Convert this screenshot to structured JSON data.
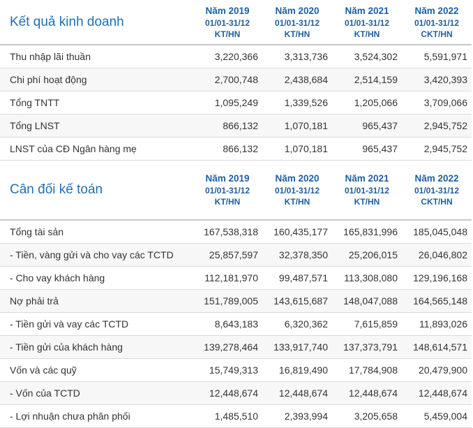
{
  "income": {
    "title": "Kết quả kinh doanh",
    "headers": [
      {
        "year": "Năm 2019",
        "period": "01/01-31/12",
        "audit": "KT/HN"
      },
      {
        "year": "Năm 2020",
        "period": "01/01-31/12",
        "audit": "KT/HN"
      },
      {
        "year": "Năm 2021",
        "period": "01/01-31/12",
        "audit": "KT/HN"
      },
      {
        "year": "Năm 2022",
        "period": "01/01-31/12",
        "audit": "CKT/HN"
      }
    ],
    "rows": [
      {
        "label": "Thu nhập lãi thuần",
        "values": [
          "3,220,366",
          "3,313,736",
          "3,524,302",
          "5,591,971"
        ]
      },
      {
        "label": "Chi phí hoạt động",
        "values": [
          "2,700,748",
          "2,438,684",
          "2,514,159",
          "3,420,393"
        ]
      },
      {
        "label": "Tổng TNTT",
        "values": [
          "1,095,249",
          "1,339,526",
          "1,205,066",
          "3,709,066"
        ]
      },
      {
        "label": "Tổng LNST",
        "values": [
          "866,132",
          "1,070,181",
          "965,437",
          "2,945,752"
        ]
      },
      {
        "label": "LNST của CĐ Ngân hàng mẹ",
        "values": [
          "866,132",
          "1,070,181",
          "965,437",
          "2,945,752"
        ]
      }
    ]
  },
  "balance": {
    "title": "Cân đối kế toán",
    "headers": [
      {
        "year": "Năm 2019",
        "period": "01/01-31/12",
        "audit": "KT/HN"
      },
      {
        "year": "Năm 2020",
        "period": "01/01-31/12",
        "audit": "KT/HN"
      },
      {
        "year": "Năm 2021",
        "period": "01/01-31/12",
        "audit": "KT/HN"
      },
      {
        "year": "Năm 2022",
        "period": "01/01-31/12",
        "audit": "CKT/HN"
      }
    ],
    "rows": [
      {
        "label": "Tổng tài sản",
        "values": [
          "167,538,318",
          "160,435,177",
          "165,831,996",
          "185,045,048"
        ]
      },
      {
        "label": "- Tiền, vàng gửi và cho vay các TCTD",
        "values": [
          "25,857,597",
          "32,378,350",
          "25,206,015",
          "26,046,802"
        ]
      },
      {
        "label": "- Cho vay khách hàng",
        "values": [
          "112,181,970",
          "99,487,571",
          "113,308,080",
          "129,196,168"
        ]
      },
      {
        "label": "Nợ phải trả",
        "values": [
          "151,789,005",
          "143,615,687",
          "148,047,088",
          "164,565,148"
        ]
      },
      {
        "label": "- Tiền gửi và vay các TCTD",
        "values": [
          "8,643,183",
          "6,320,362",
          "7,615,859",
          "11,893,026"
        ]
      },
      {
        "label": "- Tiền gửi của khách hàng",
        "values": [
          "139,278,464",
          "133,917,740",
          "137,373,791",
          "148,614,571"
        ]
      },
      {
        "label": "Vốn và các quỹ",
        "values": [
          "15,749,313",
          "16,819,490",
          "17,784,908",
          "20,479,900"
        ]
      },
      {
        "label": "- Vốn của TCTD",
        "values": [
          "12,448,674",
          "12,448,674",
          "12,448,674",
          "12,448,674"
        ]
      },
      {
        "label": "- Lợi nhuận chưa phân phối",
        "values": [
          "1,485,510",
          "2,393,994",
          "3,205,658",
          "5,459,004"
        ]
      }
    ]
  }
}
